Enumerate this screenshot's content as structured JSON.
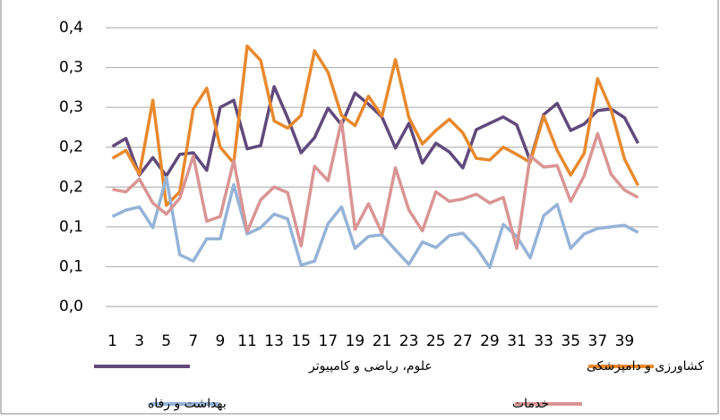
{
  "chart_data": {
    "type": "line",
    "categories": [
      1,
      null,
      3,
      null,
      5,
      null,
      7,
      null,
      9,
      null,
      11,
      null,
      13,
      null,
      15,
      null,
      17,
      null,
      19,
      null,
      21,
      null,
      23,
      null,
      25,
      null,
      27,
      null,
      29,
      null,
      31,
      null,
      33,
      null,
      35,
      null,
      37,
      null,
      39,
      null
    ],
    "ylim": [
      0,
      0.35
    ],
    "yticks": [
      {
        "value": 0,
        "label": "0,0"
      },
      {
        "value": 0.05,
        "label": "0,1"
      },
      {
        "value": 0.1,
        "label": "0,1"
      },
      {
        "value": 0.15,
        "label": "0,2"
      },
      {
        "value": 0.2,
        "label": "0,2"
      },
      {
        "value": 0.25,
        "label": "0,3"
      },
      {
        "value": 0.3,
        "label": "0,3"
      },
      {
        "value": 0.35,
        "label": "0,4"
      }
    ],
    "grid": true,
    "series": [
      {
        "name": "علوم، رياضی و کامپيوتر",
        "color": "#604a7b",
        "values": [
          0.201,
          0.211,
          0.165,
          0.187,
          0.164,
          0.191,
          0.193,
          0.171,
          0.25,
          0.259,
          0.198,
          0.202,
          0.276,
          0.237,
          0.193,
          0.212,
          0.249,
          0.228,
          0.268,
          0.254,
          0.238,
          0.199,
          0.23,
          0.18,
          0.205,
          0.194,
          0.174,
          0.222,
          0.23,
          0.238,
          0.228,
          0.183,
          0.241,
          0.255,
          0.221,
          0.229,
          0.246,
          0.248,
          0.237,
          0.205
        ]
      },
      {
        "name": "کشاورزی و دامپزشکی",
        "color": "#e8892d",
        "values": [
          0.186,
          0.196,
          0.166,
          0.259,
          0.127,
          0.144,
          0.248,
          0.274,
          0.2,
          0.18,
          0.327,
          0.309,
          0.233,
          0.224,
          0.24,
          0.321,
          0.294,
          0.24,
          0.227,
          0.264,
          0.239,
          0.31,
          0.237,
          0.204,
          0.221,
          0.235,
          0.218,
          0.186,
          0.184,
          0.2,
          0.191,
          0.181,
          0.239,
          0.196,
          0.165,
          0.192,
          0.286,
          0.247,
          0.185,
          0.152
        ]
      },
      {
        "name": "بهداشت و رفاه",
        "color": "#95b3d7",
        "values": [
          0.113,
          0.121,
          0.125,
          0.099,
          0.162,
          0.065,
          0.057,
          0.085,
          0.085,
          0.153,
          0.091,
          0.099,
          0.116,
          0.11,
          0.052,
          0.057,
          0.104,
          0.125,
          0.073,
          0.088,
          0.09,
          0.071,
          0.053,
          0.081,
          0.074,
          0.089,
          0.092,
          0.074,
          0.049,
          0.103,
          0.088,
          0.061,
          0.114,
          0.128,
          0.073,
          0.091,
          0.098,
          0.1,
          0.102,
          0.093
        ]
      },
      {
        "name": "خدمات",
        "color": "#d99594",
        "values": [
          0.147,
          0.144,
          0.16,
          0.13,
          0.116,
          0.136,
          0.189,
          0.107,
          0.113,
          0.183,
          0.094,
          0.134,
          0.15,
          0.143,
          0.076,
          0.176,
          0.158,
          0.233,
          0.097,
          0.129,
          0.092,
          0.174,
          0.121,
          0.095,
          0.144,
          0.132,
          0.135,
          0.141,
          0.13,
          0.137,
          0.073,
          0.189,
          0.175,
          0.177,
          0.132,
          0.164,
          0.217,
          0.166,
          0.146,
          0.137
        ]
      }
    ]
  }
}
